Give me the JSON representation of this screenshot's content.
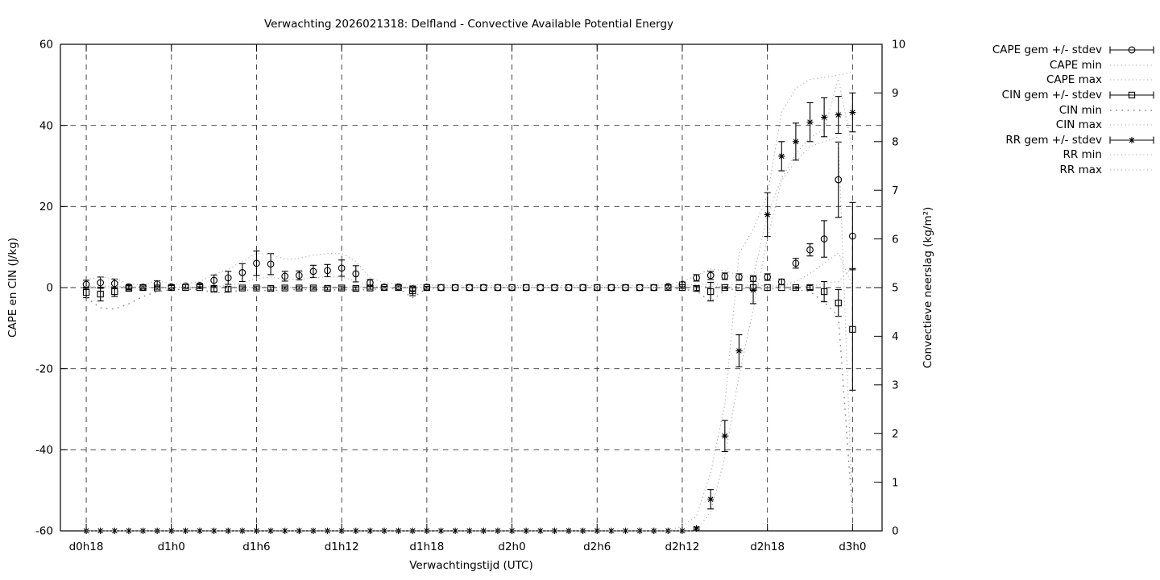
{
  "chart": {
    "title": "Verwachting 2026021318: Delfland - Convective Available Potential Energy",
    "xlabel": "Verwachtingstijd (UTC)",
    "ylabel": "CAPE en CIN (J/kg)",
    "y2label": "Convectieve neerslag (kg/m²)"
  },
  "chart_data": {
    "type": "line",
    "title": "Verwachting 2026021318: Delfland - Convective Available Potential Energy",
    "xlabel": "Verwachtingstijd (UTC)",
    "ylabel": "CAPE en CIN (J/kg)",
    "y2label": "Convectieve neerslag (kg/m²)",
    "x_start_hour": 18,
    "x_step_hours": 1,
    "x_ticks": [
      {
        "label": "d0h18",
        "t": 18
      },
      {
        "label": "d1h0",
        "t": 24
      },
      {
        "label": "d1h6",
        "t": 30
      },
      {
        "label": "d1h12",
        "t": 36
      },
      {
        "label": "d1h18",
        "t": 42
      },
      {
        "label": "d2h0",
        "t": 48
      },
      {
        "label": "d2h6",
        "t": 54
      },
      {
        "label": "d2h12",
        "t": 60
      },
      {
        "label": "d2h18",
        "t": 66
      },
      {
        "label": "d3h0",
        "t": 72
      }
    ],
    "y_axis": {
      "min": -60,
      "max": 60,
      "ticks": [
        -60,
        -40,
        -20,
        0,
        20,
        40,
        60
      ],
      "grid_ticks": [
        -40,
        -20,
        0,
        20,
        40
      ]
    },
    "y2_axis": {
      "min": 0,
      "max": 10,
      "ticks": [
        0,
        1,
        2,
        3,
        4,
        5,
        6,
        7,
        8,
        9,
        10
      ]
    },
    "colors": {
      "data": "#000000",
      "minmax": "#aaaaaa",
      "minmax_coarse": "#888888",
      "grid": "#333333"
    },
    "series": [
      {
        "name": "CAPE gem +/- stdev",
        "axis": "y",
        "style": "errorbar",
        "marker": "circle",
        "values": [
          0.8,
          1.2,
          1.0,
          0.2,
          0.1,
          0.9,
          0.2,
          0.4,
          0.5,
          1.8,
          2.4,
          3.7,
          6.0,
          5.8,
          2.8,
          3.0,
          4.0,
          4.2,
          4.8,
          3.4,
          1.2,
          0.1,
          0.2,
          -0.3,
          0.1,
          0,
          0,
          0,
          0,
          0,
          0,
          0,
          0,
          0,
          0,
          0,
          0,
          0,
          0,
          0,
          0,
          0.3,
          0.8,
          2.4,
          3.0,
          2.8,
          2.6,
          2.2,
          2.6,
          1.4,
          6.0,
          9.3,
          12.0,
          26.6,
          12.7
        ],
        "stdev": [
          1.0,
          1.4,
          1.1,
          0.5,
          0.3,
          0.8,
          0.3,
          0.3,
          0.5,
          1.3,
          1.6,
          2.2,
          3.0,
          2.6,
          1.2,
          1.1,
          1.5,
          1.5,
          2.0,
          2.0,
          0.8,
          0.2,
          0.2,
          0.5,
          0.2,
          0,
          0,
          0,
          0,
          0,
          0,
          0,
          0,
          0,
          0,
          0,
          0,
          0,
          0,
          0,
          0,
          0.3,
          0.6,
          0.8,
          1.0,
          0.8,
          0.8,
          0.7,
          0.8,
          0.7,
          1.2,
          1.5,
          4.5,
          9.3,
          8.3
        ]
      },
      {
        "name": "CAPE min",
        "axis": "y",
        "style": "minmax",
        "dot": "fine",
        "values": [
          0,
          0,
          0,
          0,
          0,
          0,
          0,
          0,
          0,
          0.3,
          0.5,
          1.2,
          2.2,
          2.6,
          2.0,
          2.0,
          2.4,
          2.6,
          2.6,
          1.6,
          0.4,
          0,
          0,
          0,
          0,
          0,
          0,
          0,
          0,
          0,
          0,
          0,
          0,
          0,
          0,
          0,
          0,
          0,
          0,
          0,
          0,
          0.2,
          0.5,
          0.8,
          0.8,
          0.8,
          0.6,
          0.6,
          0.5,
          0.3,
          1.5,
          3.5,
          6.0,
          8.5,
          0.5
        ]
      },
      {
        "name": "CAPE max",
        "axis": "y",
        "style": "minmax",
        "dot": "fine",
        "values": [
          2.0,
          2.6,
          2.2,
          1.0,
          0.6,
          1.8,
          0.8,
          1.0,
          1.5,
          3.2,
          4.5,
          6.5,
          8.4,
          8.3,
          7.0,
          7.2,
          8.0,
          8.4,
          8.4,
          6.5,
          2.4,
          1.2,
          1.0,
          0.8,
          0.6,
          0.5,
          0.5,
          0.5,
          0.5,
          0.5,
          0.5,
          0.5,
          0.5,
          0.5,
          0.5,
          0.5,
          0.5,
          0.5,
          0.5,
          0.5,
          0.5,
          0.8,
          1.5,
          3.0,
          4.6,
          4.2,
          3.0,
          2.6,
          17.9,
          27,
          33,
          37,
          39,
          51.5,
          34
        ]
      },
      {
        "name": "CIN gem +/- stdev",
        "axis": "y",
        "style": "errorbar",
        "marker": "square",
        "values": [
          -1.2,
          -1.6,
          -1.0,
          -0.2,
          0,
          -0.1,
          0,
          0,
          0,
          -0.4,
          -0.4,
          -0.1,
          -0.1,
          -0.2,
          -0.1,
          -0.1,
          -0.1,
          -0.2,
          -0.1,
          -0.2,
          -0.1,
          0,
          0,
          -0.8,
          0,
          0,
          0,
          0,
          0,
          0,
          0,
          0,
          0,
          0,
          0,
          0,
          0,
          0,
          0,
          0,
          0,
          0,
          0,
          -0.2,
          -1.0,
          0,
          0,
          0,
          0,
          0,
          0,
          0,
          -1.0,
          -3.8,
          -10.3
        ],
        "stdev": [
          1.3,
          1.7,
          1.2,
          0.4,
          0.1,
          0.3,
          0.1,
          0.1,
          0.2,
          0.6,
          0.6,
          0.3,
          0.3,
          0.4,
          0.3,
          0.3,
          0.3,
          0.4,
          0.3,
          0.4,
          0.3,
          0.1,
          0.1,
          1.2,
          0.1,
          0,
          0,
          0,
          0,
          0,
          0,
          0,
          0,
          0,
          0,
          0,
          0,
          0,
          0,
          0,
          0,
          0.1,
          0.2,
          0.5,
          2.3,
          0.2,
          0.1,
          0.1,
          0.1,
          0.1,
          0.2,
          0.5,
          2.5,
          3.3,
          15.0
        ]
      },
      {
        "name": "CIN min",
        "axis": "y",
        "style": "minmax",
        "dot": "coarse",
        "values": [
          -2.5,
          -5.0,
          -5.3,
          -4.0,
          -2.2,
          -1.0,
          -0.5,
          -0.4,
          -0.5,
          -1.2,
          -1.2,
          -0.6,
          -0.6,
          -0.8,
          -0.5,
          -0.5,
          -0.5,
          -0.6,
          -0.5,
          -0.6,
          -0.5,
          -0.2,
          -0.2,
          -2.5,
          -0.2,
          0,
          0,
          0,
          0,
          0,
          0,
          0,
          0,
          0,
          0,
          0,
          0,
          0,
          0,
          0,
          0,
          -0.2,
          -0.4,
          -0.8,
          -3.5,
          -0.5,
          -0.3,
          -0.3,
          -0.3,
          -0.3,
          -0.5,
          -1.0,
          -3.6,
          -7.0,
          -56
        ]
      },
      {
        "name": "CIN max",
        "axis": "y",
        "style": "minmax",
        "dot": "fine",
        "values": [
          0.3,
          0.4,
          0.3,
          0.2,
          0.1,
          0.1,
          0.1,
          0.1,
          0.1,
          0.2,
          0.2,
          0.1,
          0.1,
          0.2,
          0.1,
          0.1,
          0.1,
          0.2,
          0.1,
          0.2,
          0.1,
          0.1,
          0.1,
          0.2,
          0.1,
          0,
          0,
          0,
          0,
          0,
          0,
          0,
          0,
          0,
          0,
          0,
          0,
          0,
          0,
          0,
          0,
          0.1,
          0.1,
          0.2,
          0.3,
          0.1,
          0.1,
          0.1,
          0.1,
          0.1,
          0.2,
          0.3,
          1.0,
          1.5,
          5.0
        ]
      },
      {
        "name": "RR gem +/- stdev",
        "axis": "y2",
        "style": "errorbar",
        "marker": "star",
        "values": [
          0,
          0,
          0,
          0,
          0,
          0,
          0,
          0,
          0,
          0,
          0,
          0,
          0,
          0,
          0,
          0,
          0,
          0,
          0,
          0,
          0,
          0,
          0,
          0,
          0,
          0,
          0,
          0,
          0,
          0,
          0,
          0,
          0,
          0,
          0,
          0,
          0,
          0,
          0,
          0,
          0,
          0,
          0,
          0.05,
          0.65,
          1.95,
          3.7,
          4.95,
          6.5,
          7.7,
          8.0,
          8.4,
          8.5,
          8.55,
          8.6
        ],
        "stdev": [
          0,
          0,
          0,
          0,
          0,
          0,
          0,
          0,
          0,
          0,
          0,
          0,
          0,
          0,
          0,
          0,
          0,
          0,
          0,
          0,
          0,
          0,
          0,
          0,
          0,
          0,
          0,
          0,
          0,
          0,
          0,
          0,
          0,
          0,
          0,
          0,
          0,
          0,
          0,
          0,
          0,
          0,
          0,
          0.03,
          0.2,
          0.32,
          0.33,
          0.28,
          0.45,
          0.3,
          0.38,
          0.4,
          0.4,
          0.38,
          0.4
        ]
      },
      {
        "name": "RR min",
        "axis": "y2",
        "style": "minmax",
        "dot": "fine",
        "values": [
          0,
          0,
          0,
          0,
          0,
          0,
          0,
          0,
          0,
          0,
          0,
          0,
          0,
          0,
          0,
          0,
          0,
          0,
          0,
          0,
          0,
          0,
          0,
          0,
          0,
          0,
          0,
          0,
          0,
          0,
          0,
          0,
          0,
          0,
          0,
          0,
          0,
          0,
          0,
          0,
          0,
          0,
          0,
          0,
          0.4,
          1.5,
          3.2,
          4.55,
          6.0,
          7.2,
          7.6,
          7.9,
          8.0,
          8.1,
          0.4
        ]
      },
      {
        "name": "RR max",
        "axis": "y2",
        "style": "minmax",
        "dot": "fine",
        "values": [
          0,
          0,
          0,
          0,
          0,
          0,
          0,
          0,
          0,
          0,
          0,
          0,
          0,
          0,
          0,
          0,
          0,
          0,
          0,
          0,
          0,
          0,
          0,
          0,
          0,
          0,
          0,
          0,
          0,
          0,
          0,
          0,
          0,
          0,
          0,
          0,
          0,
          0,
          0,
          0,
          0,
          0,
          0.1,
          0.3,
          1.2,
          2.6,
          5.7,
          6.2,
          6.9,
          8.6,
          9.1,
          9.28,
          9.32,
          9.37,
          9.42
        ]
      }
    ]
  }
}
